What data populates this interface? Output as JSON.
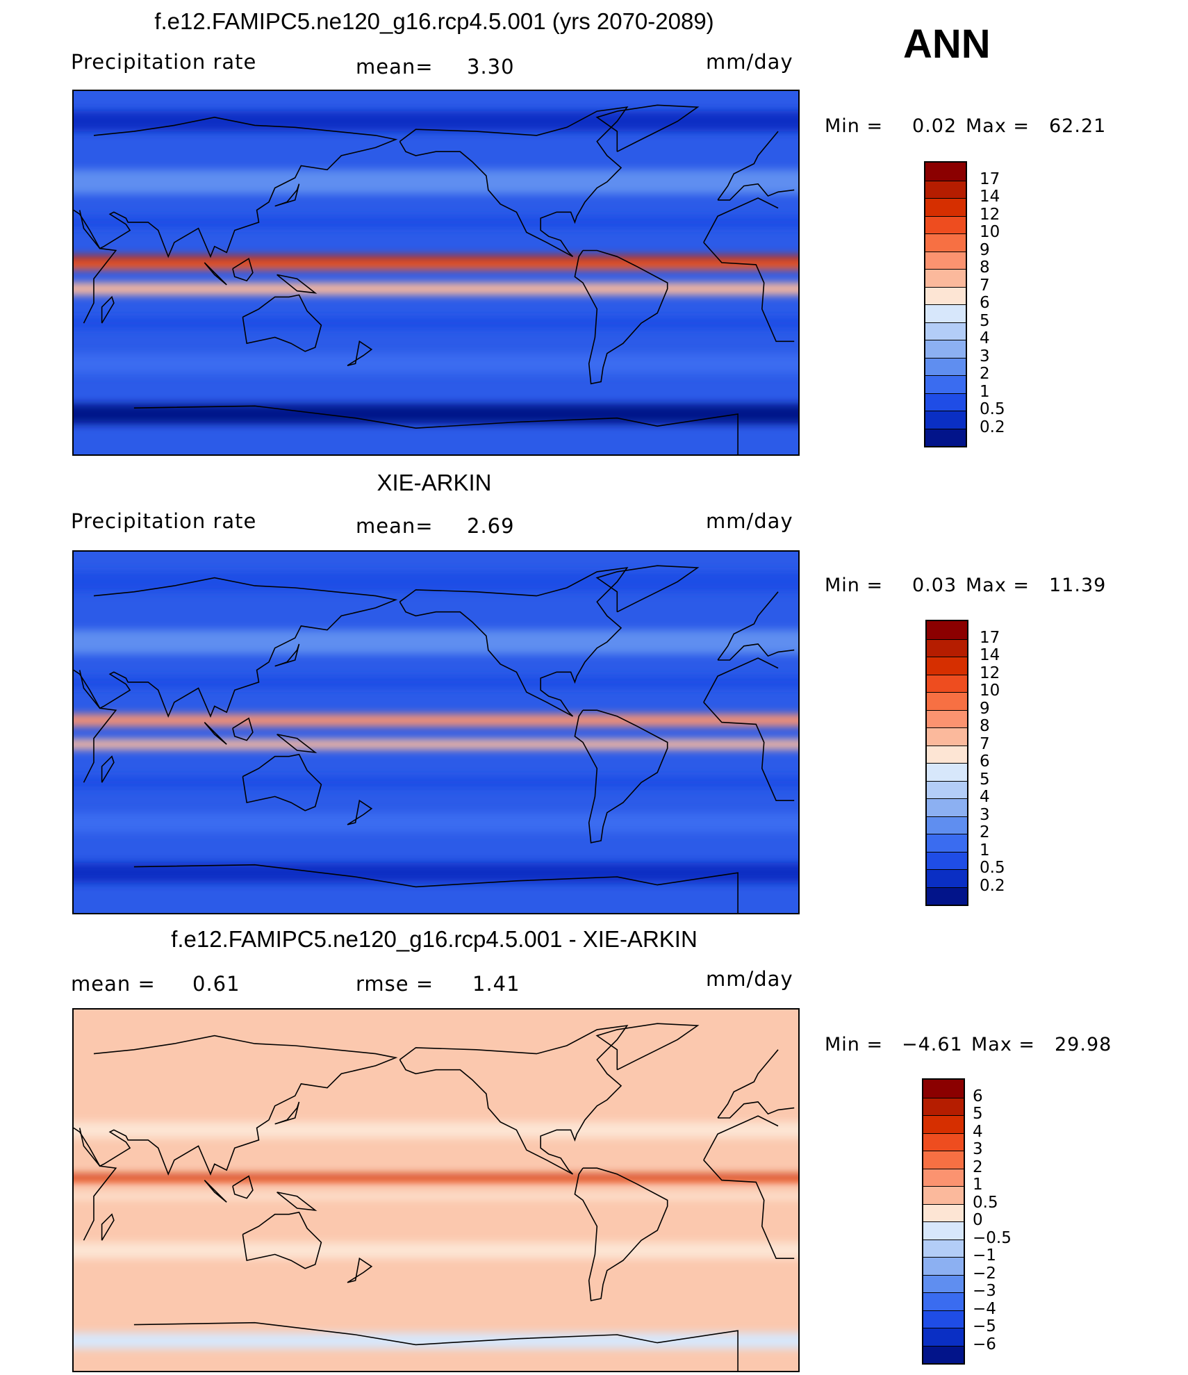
{
  "season": "ANN",
  "panels": [
    {
      "id": "model",
      "title": "f.e12.FAMIPC5.ne120_g16.rcp4.5.001 (yrs 2070-2089)",
      "left_label": "Precipitation  rate",
      "center_label": "mean=",
      "center_value": "3.30",
      "units": "mm/day",
      "min_label": "Min  =",
      "min_value": "0.02",
      "max_label": "Max  =",
      "max_value": "62.21",
      "levels": [
        "17",
        "14",
        "12",
        "10",
        "9",
        "8",
        "7",
        "6",
        "5",
        "4",
        "3",
        "2",
        "1",
        "0.5",
        "0.2"
      ],
      "colors": [
        "#8b0000",
        "#b51d00",
        "#d62f00",
        "#ee4d1f",
        "#f77043",
        "#fb9370",
        "#fbb99c",
        "#fde5d4",
        "#d7e7fb",
        "#b3cdf7",
        "#8cb0f2",
        "#5f8ef0",
        "#3a6cf0",
        "#1f4de6",
        "#0a2fc4",
        "#02148a"
      ],
      "fields": {
        "base": "#2c5be8",
        "belts": [
          {
            "lat": 5,
            "width": 7,
            "color": "#f35a26"
          },
          {
            "lat": 7,
            "width": 2.5,
            "color": "#b51d00"
          },
          {
            "lat": -8,
            "width": 6,
            "color": "#fbb99c"
          },
          {
            "lat": 45,
            "width": 12,
            "color": "#5f8ef0"
          },
          {
            "lat": -45,
            "width": 10,
            "color": "#3a6cf0"
          },
          {
            "lat": 25,
            "width": 6,
            "color": "#1f4de6"
          },
          {
            "lat": -25,
            "width": 6,
            "color": "#1f4de6"
          },
          {
            "lat": -70,
            "width": 10,
            "color": "#02148a"
          },
          {
            "lat": 75,
            "width": 10,
            "color": "#0a2fc4"
          }
        ]
      }
    },
    {
      "id": "obs",
      "title": "XIE-ARKIN",
      "left_label": "Precipitation  rate",
      "center_label": "mean=",
      "center_value": "2.69",
      "units": "mm/day",
      "min_label": "Min  =",
      "min_value": "0.03",
      "max_label": "Max  =",
      "max_value": "11.39",
      "levels": [
        "17",
        "14",
        "12",
        "10",
        "9",
        "8",
        "7",
        "6",
        "5",
        "4",
        "3",
        "2",
        "1",
        "0.5",
        "0.2"
      ],
      "colors": [
        "#8b0000",
        "#b51d00",
        "#d62f00",
        "#ee4d1f",
        "#f77043",
        "#fb9370",
        "#fbb99c",
        "#fde5d4",
        "#d7e7fb",
        "#b3cdf7",
        "#8cb0f2",
        "#5f8ef0",
        "#3a6cf0",
        "#1f4de6",
        "#0a2fc4",
        "#02148a"
      ],
      "fields": {
        "base": "#2c5be8",
        "belts": [
          {
            "lat": 6,
            "width": 6,
            "color": "#fb9370"
          },
          {
            "lat": -6,
            "width": 5,
            "color": "#fbb99c"
          },
          {
            "lat": 45,
            "width": 12,
            "color": "#5f8ef0"
          },
          {
            "lat": -45,
            "width": 10,
            "color": "#3a6cf0"
          },
          {
            "lat": 25,
            "width": 6,
            "color": "#1f4de6"
          },
          {
            "lat": -25,
            "width": 6,
            "color": "#1f4de6"
          },
          {
            "lat": -70,
            "width": 10,
            "color": "#0a2fc4"
          },
          {
            "lat": 75,
            "width": 10,
            "color": "#1f4de6"
          }
        ]
      }
    },
    {
      "id": "diff",
      "title": "f.e12.FAMIPC5.ne120_g16.rcp4.5.001 - XIE-ARKIN",
      "left_label": "mean  =",
      "left_value": "0.61",
      "center_label": "rmse  =",
      "center_value": "1.41",
      "units": "mm/day",
      "min_label": "Min  =",
      "min_value": "−4.61",
      "max_label": "Max  =",
      "max_value": "29.98",
      "levels": [
        "6",
        "5",
        "4",
        "3",
        "2",
        "1",
        "0.5",
        "0",
        "−0.5",
        "−1",
        "−2",
        "−3",
        "−4",
        "−5",
        "−6"
      ],
      "colors": [
        "#8b0000",
        "#b51d00",
        "#d62f00",
        "#ee4d1f",
        "#f77043",
        "#fb9370",
        "#fbb99c",
        "#fde5d4",
        "#d7e7fb",
        "#b3cdf7",
        "#8cb0f2",
        "#5f8ef0",
        "#3a6cf0",
        "#1f4de6",
        "#0a2fc4",
        "#02148a"
      ],
      "fields": {
        "base": "#fbc8ae",
        "belts": [
          {
            "lat": 6,
            "width": 4,
            "color": "#ee4d1f"
          },
          {
            "lat": 7,
            "width": 1.5,
            "color": "#b51d00"
          },
          {
            "lat": -3,
            "width": 3,
            "color": "#fde5d4"
          },
          {
            "lat": 30,
            "width": 8,
            "color": "#fde5d4"
          },
          {
            "lat": -30,
            "width": 8,
            "color": "#fde5d4"
          },
          {
            "lat": -75,
            "width": 8,
            "color": "#d7e7fb"
          }
        ]
      }
    }
  ]
}
